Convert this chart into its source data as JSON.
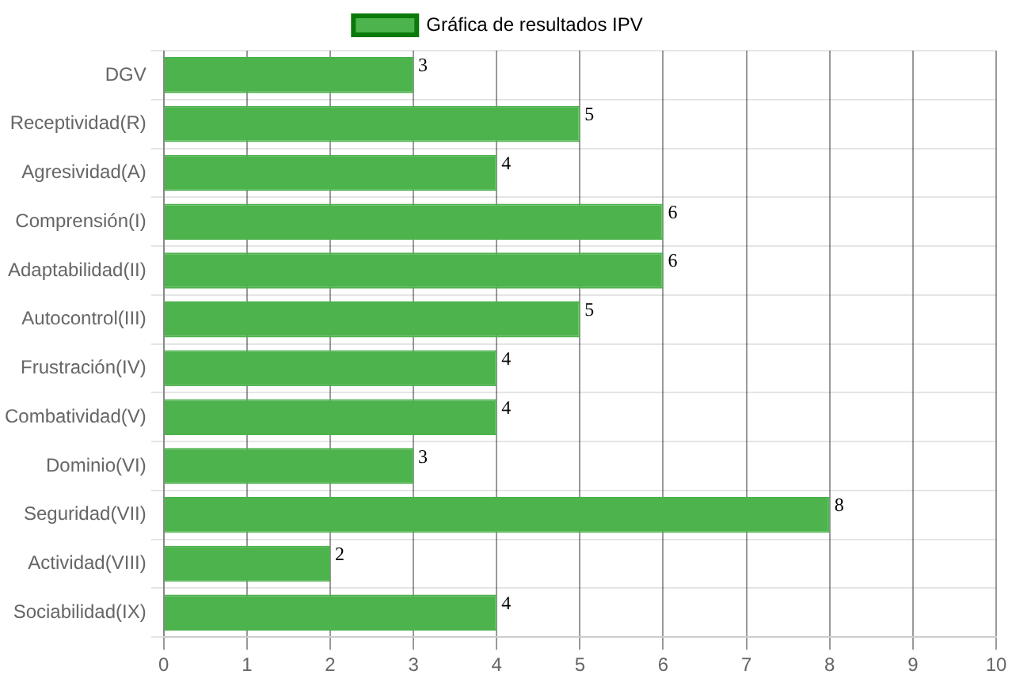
{
  "chart_data": {
    "type": "bar",
    "orientation": "horizontal",
    "categories": [
      "DGV",
      "Receptividad(R)",
      "Agresividad(A)",
      "Comprensión(I)",
      "Adaptabilidad(II)",
      "Autocontrol(III)",
      "Frustración(IV)",
      "Combatividad(V)",
      "Dominio(VI)",
      "Seguridad(VII)",
      "Actividad(VIII)",
      "Sociabilidad(IX)"
    ],
    "series": [
      {
        "name": "Gráfica de resultados IPV",
        "color": "#4db34d",
        "values": [
          3,
          5,
          4,
          6,
          6,
          5,
          4,
          4,
          3,
          8,
          2,
          4
        ]
      }
    ],
    "xlim": [
      0,
      10
    ],
    "xticks": [
      0,
      1,
      2,
      3,
      4,
      5,
      6,
      7,
      8,
      9,
      10
    ],
    "grid": true,
    "legend": "top",
    "data_labels": true
  }
}
